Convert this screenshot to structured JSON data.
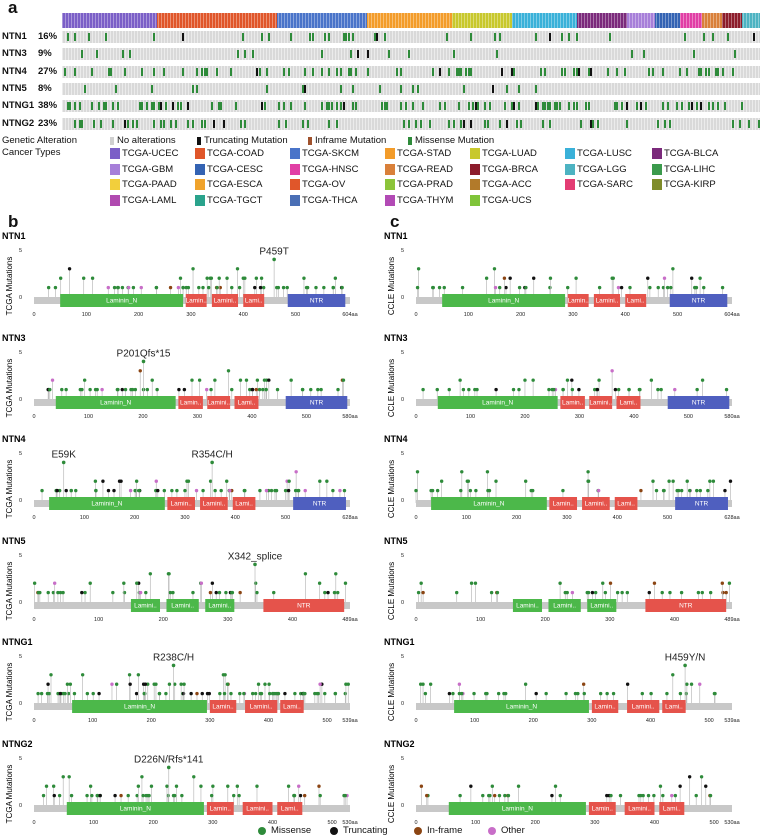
{
  "panels": {
    "a": "a",
    "b": "b",
    "c": "c"
  },
  "colors": {
    "missense": "#2e8b3a",
    "truncating": "#111111",
    "inframe": "#8b4513",
    "other": "#c86ec8",
    "track": "#d9d9d9",
    "backbone": "#c8c8c8"
  },
  "oncoprint": {
    "rows": [
      {
        "gene": "NTN1",
        "pct": "16%"
      },
      {
        "gene": "NTN3",
        "pct": "9%"
      },
      {
        "gene": "NTN4",
        "pct": "27%"
      },
      {
        "gene": "NTN5",
        "pct": "8%"
      },
      {
        "gene": "NTNG1",
        "pct": "38%"
      },
      {
        "gene": "NTNG2",
        "pct": "23%"
      }
    ]
  },
  "legend": {
    "genetic_alteration_label": "Genetic Alteration",
    "cancer_types_label": "Cancer Types",
    "alterations": [
      {
        "label": "No alterations",
        "color": "#d0d0d0"
      },
      {
        "label": "Truncating Mutation",
        "color": "#111111"
      },
      {
        "label": "Inframe Mutation",
        "color": "#a0522d"
      },
      {
        "label": "Missense Mutation",
        "color": "#2e8b3a"
      }
    ],
    "cancer_types": [
      {
        "label": "TCGA-UCEC",
        "color": "#7b5fc7"
      },
      {
        "label": "TCGA-COAD",
        "color": "#e0562a"
      },
      {
        "label": "TCGA-SKCM",
        "color": "#4a74c9"
      },
      {
        "label": "TCGA-STAD",
        "color": "#f39c2a"
      },
      {
        "label": "TCGA-LUAD",
        "color": "#c8c82d"
      },
      {
        "label": "TCGA-LUSC",
        "color": "#3ab1d9"
      },
      {
        "label": "TCGA-BLCA",
        "color": "#7b2a7b"
      },
      {
        "label": "TCGA-GBM",
        "color": "#a77fd9"
      },
      {
        "label": "TCGA-CESC",
        "color": "#3463b3"
      },
      {
        "label": "TCGA-HNSC",
        "color": "#e13fa5"
      },
      {
        "label": "TCGA-READ",
        "color": "#d9803a"
      },
      {
        "label": "TCGA-BRCA",
        "color": "#8c1c2b"
      },
      {
        "label": "TCGA-LGG",
        "color": "#4db3c2"
      },
      {
        "label": "TCGA-LIHC",
        "color": "#3b9a4c"
      },
      {
        "label": "TCGA-PAAD",
        "color": "#f2cf3c"
      },
      {
        "label": "TCGA-ESCA",
        "color": "#f0a32c"
      },
      {
        "label": "TCGA-OV",
        "color": "#e0562a"
      },
      {
        "label": "TCGA-PRAD",
        "color": "#8cc43a"
      },
      {
        "label": "TCGA-ACC",
        "color": "#b27a2a"
      },
      {
        "label": "TCGA-SARC",
        "color": "#e33c73"
      },
      {
        "label": "TCGA-KIRP",
        "color": "#7f8c2a"
      },
      {
        "label": "TCGA-LAML",
        "color": "#b04ab0"
      },
      {
        "label": "TCGA-TGCT",
        "color": "#2aa38c"
      },
      {
        "label": "TCGA-THCA",
        "color": "#4a6fb5"
      },
      {
        "label": "TCGA-THYM",
        "color": "#b24ab5"
      },
      {
        "label": "TCGA-UCS",
        "color": "#7fc43a"
      }
    ]
  },
  "lollipops": {
    "tcga_ylabel": "TCGA  Mutations",
    "ccle_ylabel": "CCLE  Mutations",
    "ytick_top": "5",
    "ytick_bottom": "0",
    "genes": [
      {
        "gene": "NTN1",
        "length": 604,
        "length_label": "604aa",
        "ticks": [
          "0",
          "100",
          "200",
          "300",
          "400",
          "500"
        ],
        "domains": [
          {
            "label": "Laminin_N",
            "start": 50,
            "end": 285,
            "color": "#4cb84a"
          },
          {
            "label": "Lamin..",
            "start": 290,
            "end": 330,
            "color": "#e5534b"
          },
          {
            "label": "Lamini..",
            "start": 340,
            "end": 390,
            "color": "#e5534b"
          },
          {
            "label": "Lami..",
            "start": 400,
            "end": 440,
            "color": "#e5534b"
          },
          {
            "label": "NTR",
            "start": 485,
            "end": 595,
            "color": "#4f5fbf"
          }
        ],
        "tcga_annotation": {
          "label": "P459T",
          "pos": 459
        },
        "ccle_annotation": null
      },
      {
        "gene": "NTN3",
        "length": 580,
        "length_label": "580aa",
        "ticks": [
          "0",
          "100",
          "200",
          "300",
          "400",
          "500"
        ],
        "domains": [
          {
            "label": "Laminin_N",
            "start": 40,
            "end": 260,
            "color": "#4cb84a"
          },
          {
            "label": "Lamin..",
            "start": 265,
            "end": 310,
            "color": "#e5534b"
          },
          {
            "label": "Lamini..",
            "start": 318,
            "end": 360,
            "color": "#e5534b"
          },
          {
            "label": "Lami..",
            "start": 368,
            "end": 412,
            "color": "#e5534b"
          },
          {
            "label": "NTR",
            "start": 462,
            "end": 575,
            "color": "#4f5fbf"
          }
        ],
        "tcga_annotation": {
          "label": "P201Qfs*15",
          "pos": 201
        },
        "ccle_annotation": null
      },
      {
        "gene": "NTN4",
        "length": 628,
        "length_label": "628aa",
        "ticks": [
          "0",
          "100",
          "200",
          "300",
          "400",
          "500"
        ],
        "domains": [
          {
            "label": "Laminin_N",
            "start": 30,
            "end": 260,
            "color": "#4cb84a"
          },
          {
            "label": "Lamin..",
            "start": 265,
            "end": 320,
            "color": "#e5534b"
          },
          {
            "label": "Lamini..",
            "start": 330,
            "end": 385,
            "color": "#e5534b"
          },
          {
            "label": "Lami..",
            "start": 395,
            "end": 440,
            "color": "#e5534b"
          },
          {
            "label": "NTR",
            "start": 515,
            "end": 620,
            "color": "#4f5fbf"
          }
        ],
        "tcga_annotation": {
          "label": "E59K",
          "pos": 59
        },
        "tcga_annotation2": {
          "label": "R354C/H",
          "pos": 354
        },
        "ccle_annotation": null
      },
      {
        "gene": "NTN5",
        "length": 489,
        "length_label": "489aa",
        "ticks": [
          "0",
          "100",
          "200",
          "300",
          "400"
        ],
        "domains": [
          {
            "label": "Lamini..",
            "start": 150,
            "end": 195,
            "color": "#4cb84a"
          },
          {
            "label": "Lamini..",
            "start": 205,
            "end": 255,
            "color": "#4cb84a"
          },
          {
            "label": "Lamini..",
            "start": 265,
            "end": 310,
            "color": "#4cb84a"
          },
          {
            "label": "NTR",
            "start": 355,
            "end": 480,
            "color": "#e5534b"
          }
        ],
        "tcga_annotation": {
          "label": "X342_splice",
          "pos": 342
        },
        "ccle_annotation": null
      },
      {
        "gene": "NTNG1",
        "length": 539,
        "length_label": "539aa",
        "ticks": [
          "0",
          "100",
          "200",
          "300",
          "400",
          "500"
        ],
        "domains": [
          {
            "label": "Laminin_N",
            "start": 65,
            "end": 295,
            "color": "#4cb84a"
          },
          {
            "label": "Lamin..",
            "start": 300,
            "end": 345,
            "color": "#e5534b"
          },
          {
            "label": "Lamini..",
            "start": 360,
            "end": 415,
            "color": "#e5534b"
          },
          {
            "label": "Lami..",
            "start": 420,
            "end": 460,
            "color": "#e5534b"
          }
        ],
        "tcga_annotation": {
          "label": "R238C/H",
          "pos": 238
        },
        "ccle_annotation": {
          "label": "H459Y/N",
          "pos": 459
        }
      },
      {
        "gene": "NTNG2",
        "length": 530,
        "length_label": "530aa",
        "ticks": [
          "0",
          "100",
          "200",
          "300",
          "400",
          "500"
        ],
        "domains": [
          {
            "label": "Laminin_N",
            "start": 55,
            "end": 285,
            "color": "#4cb84a"
          },
          {
            "label": "Lamin..",
            "start": 290,
            "end": 335,
            "color": "#e5534b"
          },
          {
            "label": "Lamini..",
            "start": 350,
            "end": 400,
            "color": "#e5534b"
          },
          {
            "label": "Lami..",
            "start": 408,
            "end": 450,
            "color": "#e5534b"
          }
        ],
        "tcga_annotation": {
          "label": "D226N/Rfs*141",
          "pos": 226
        },
        "ccle_annotation": null
      }
    ]
  },
  "bottom_legend": [
    {
      "label": "Missense",
      "color": "#2e8b3a"
    },
    {
      "label": "Truncating",
      "color": "#111111"
    },
    {
      "label": "In-frame",
      "color": "#8b4513"
    },
    {
      "label": "Other",
      "color": "#c86ec8"
    }
  ]
}
